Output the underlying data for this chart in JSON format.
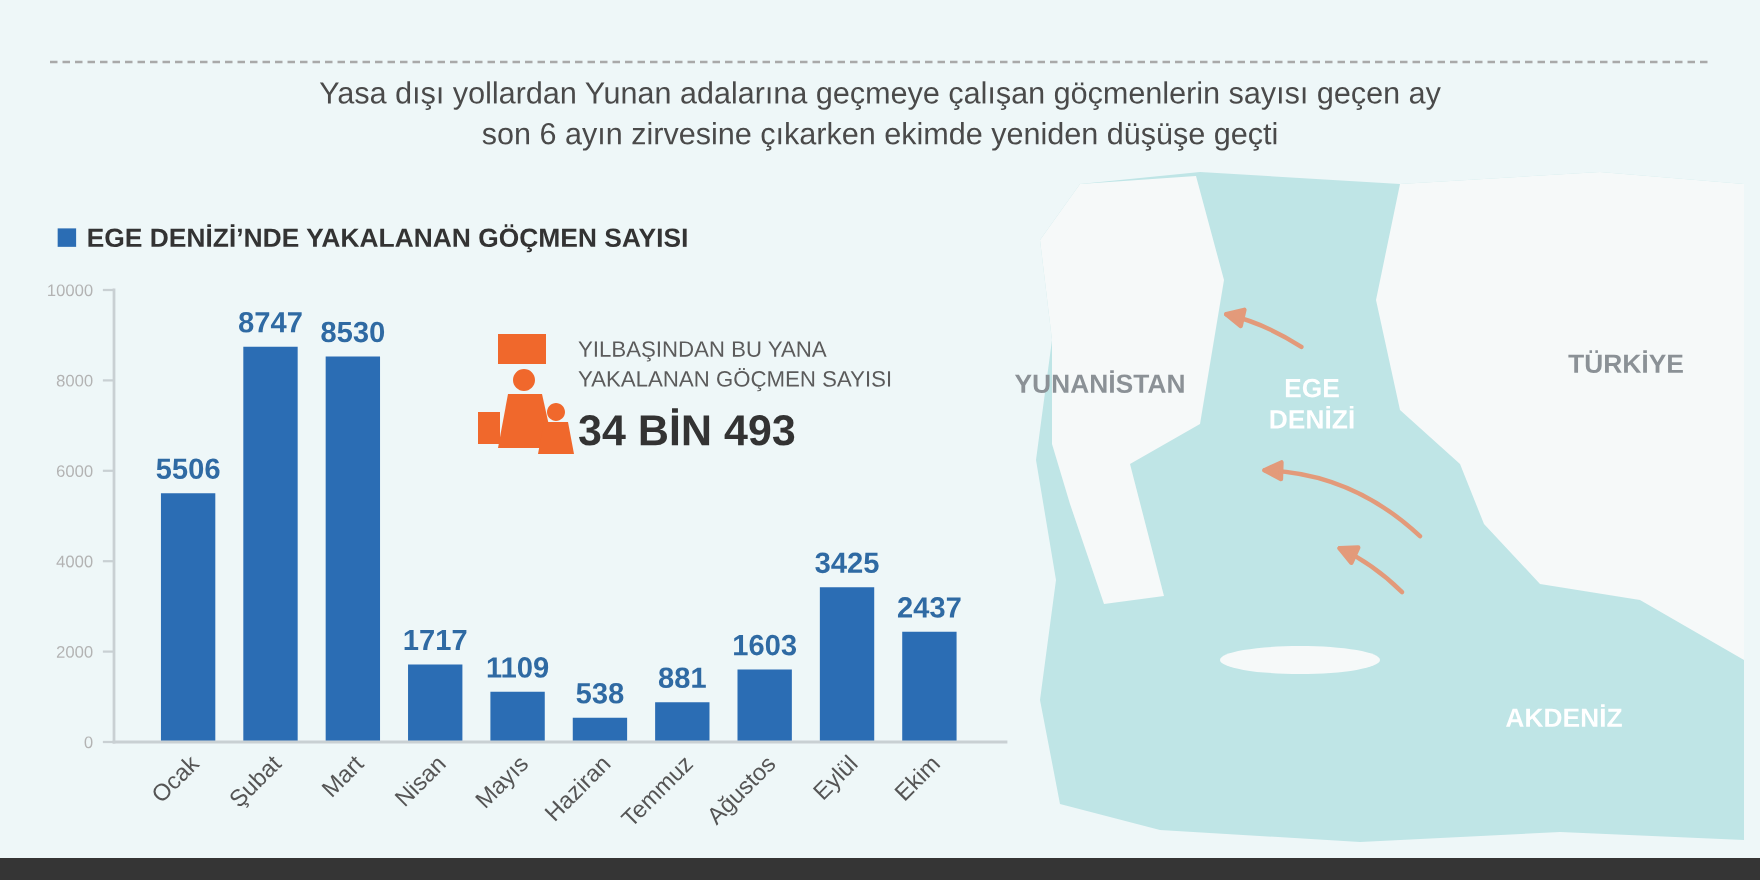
{
  "chart_data": {
    "type": "bar",
    "subtitle": "Yasa dışı yollardan Yunan adalarına geçmeye çalışan göçmenlerin sayısı geçen ay\nson 6 ayın zirvesine çıkarken ekimde yeniden düşüşe geçti",
    "categories": [
      "Ocak",
      "Şubat",
      "Mart",
      "Nisan",
      "Mayıs",
      "Haziran",
      "Temmuz",
      "Ağustos",
      "Eylül",
      "Ekim"
    ],
    "series": [
      {
        "name": "EGE DENİZİ’NDE YAKALANAN GÖÇMEN SAYISI",
        "color": "#2b6db4",
        "values": [
          5506,
          8747,
          8530,
          1717,
          1109,
          538,
          881,
          1603,
          3425,
          2437
        ]
      }
    ],
    "ylim": [
      0,
      10000
    ],
    "yticks": [
      0,
      2000,
      4000,
      6000,
      8000,
      10000
    ],
    "data_labels": true,
    "grid": false,
    "legend": "top left",
    "annotations": [
      "YILBAŞINDAN BU YANA\nYAKALANAN GÖÇMEN SAYISI",
      "34 BİN 493",
      "YUNANİSTAN",
      "EGE\nDENİZİ",
      "TÜRKİYE",
      "AKDENİZ"
    ]
  }
}
